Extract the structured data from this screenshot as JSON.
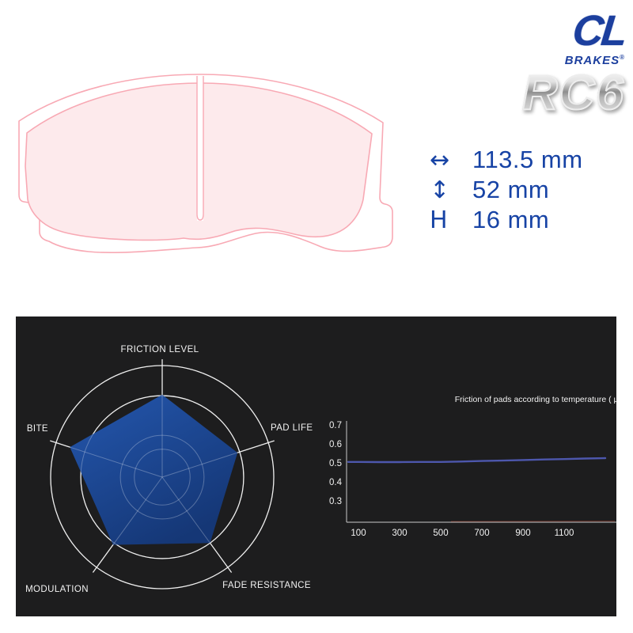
{
  "colors": {
    "brand_blue": "#1c3f9e",
    "dim_blue": "#1743a5",
    "pad_outline": "#f8a9b4",
    "pad_fill": "#fdeaec",
    "panel_bg": "#1d1d1e",
    "radar_fill_start": "#2457ae",
    "radar_fill_end": "#153776",
    "grid_white": "#e9e9e9",
    "line_blue": "#4d57ad",
    "line_red": "#6e2d22",
    "chart_text": "#f2f2f2"
  },
  "logo": {
    "letters": "CL",
    "sub_label": "BRAKES",
    "registered_mark": "®",
    "product_code": "RC6"
  },
  "dimensions": {
    "rows": [
      {
        "glyph": "↔",
        "value": "113.5 mm",
        "meaning": "pad width"
      },
      {
        "glyph": "↕",
        "value": "52 mm",
        "meaning": "pad height"
      },
      {
        "glyph": "H",
        "value": "16 mm",
        "meaning": "pad thickness"
      }
    ]
  },
  "chart_data": [
    {
      "type": "radar",
      "title": "",
      "categories": [
        "FRICTION LEVEL",
        "PAD LIFE",
        "FADE RESISTANCE",
        "MODULATION",
        "BITE"
      ],
      "values": [
        0.74,
        0.71,
        0.73,
        0.75,
        0.87
      ],
      "max": 1.0,
      "ring_fractions": [
        1.0,
        0.73,
        0.375,
        0.25
      ],
      "legend_position": "none",
      "grid": true
    },
    {
      "type": "line",
      "title": "Friction of pads according to temperature ( μ )",
      "xlabel": "",
      "ylabel": "",
      "x": [
        50,
        100,
        200,
        300,
        400,
        500,
        600,
        700,
        800,
        900,
        1000,
        1100,
        1200,
        1300
      ],
      "series": [
        {
          "name": "friction",
          "values": [
            0.505,
            0.505,
            0.504,
            0.504,
            0.505,
            0.505,
            0.507,
            0.51,
            0.512,
            0.515,
            0.518,
            0.52,
            0.523,
            0.525
          ]
        }
      ],
      "x_ticks": [
        100,
        300,
        500,
        700,
        900,
        1100
      ],
      "y_ticks": [
        0.7,
        0.6,
        0.5,
        0.4,
        0.3
      ],
      "ylim": [
        0.19,
        0.75
      ],
      "grid": false,
      "baseline_accent": {
        "color_key": "line_red",
        "from_x": 1200,
        "note": "faint red segment along x-axis right end"
      }
    }
  ]
}
